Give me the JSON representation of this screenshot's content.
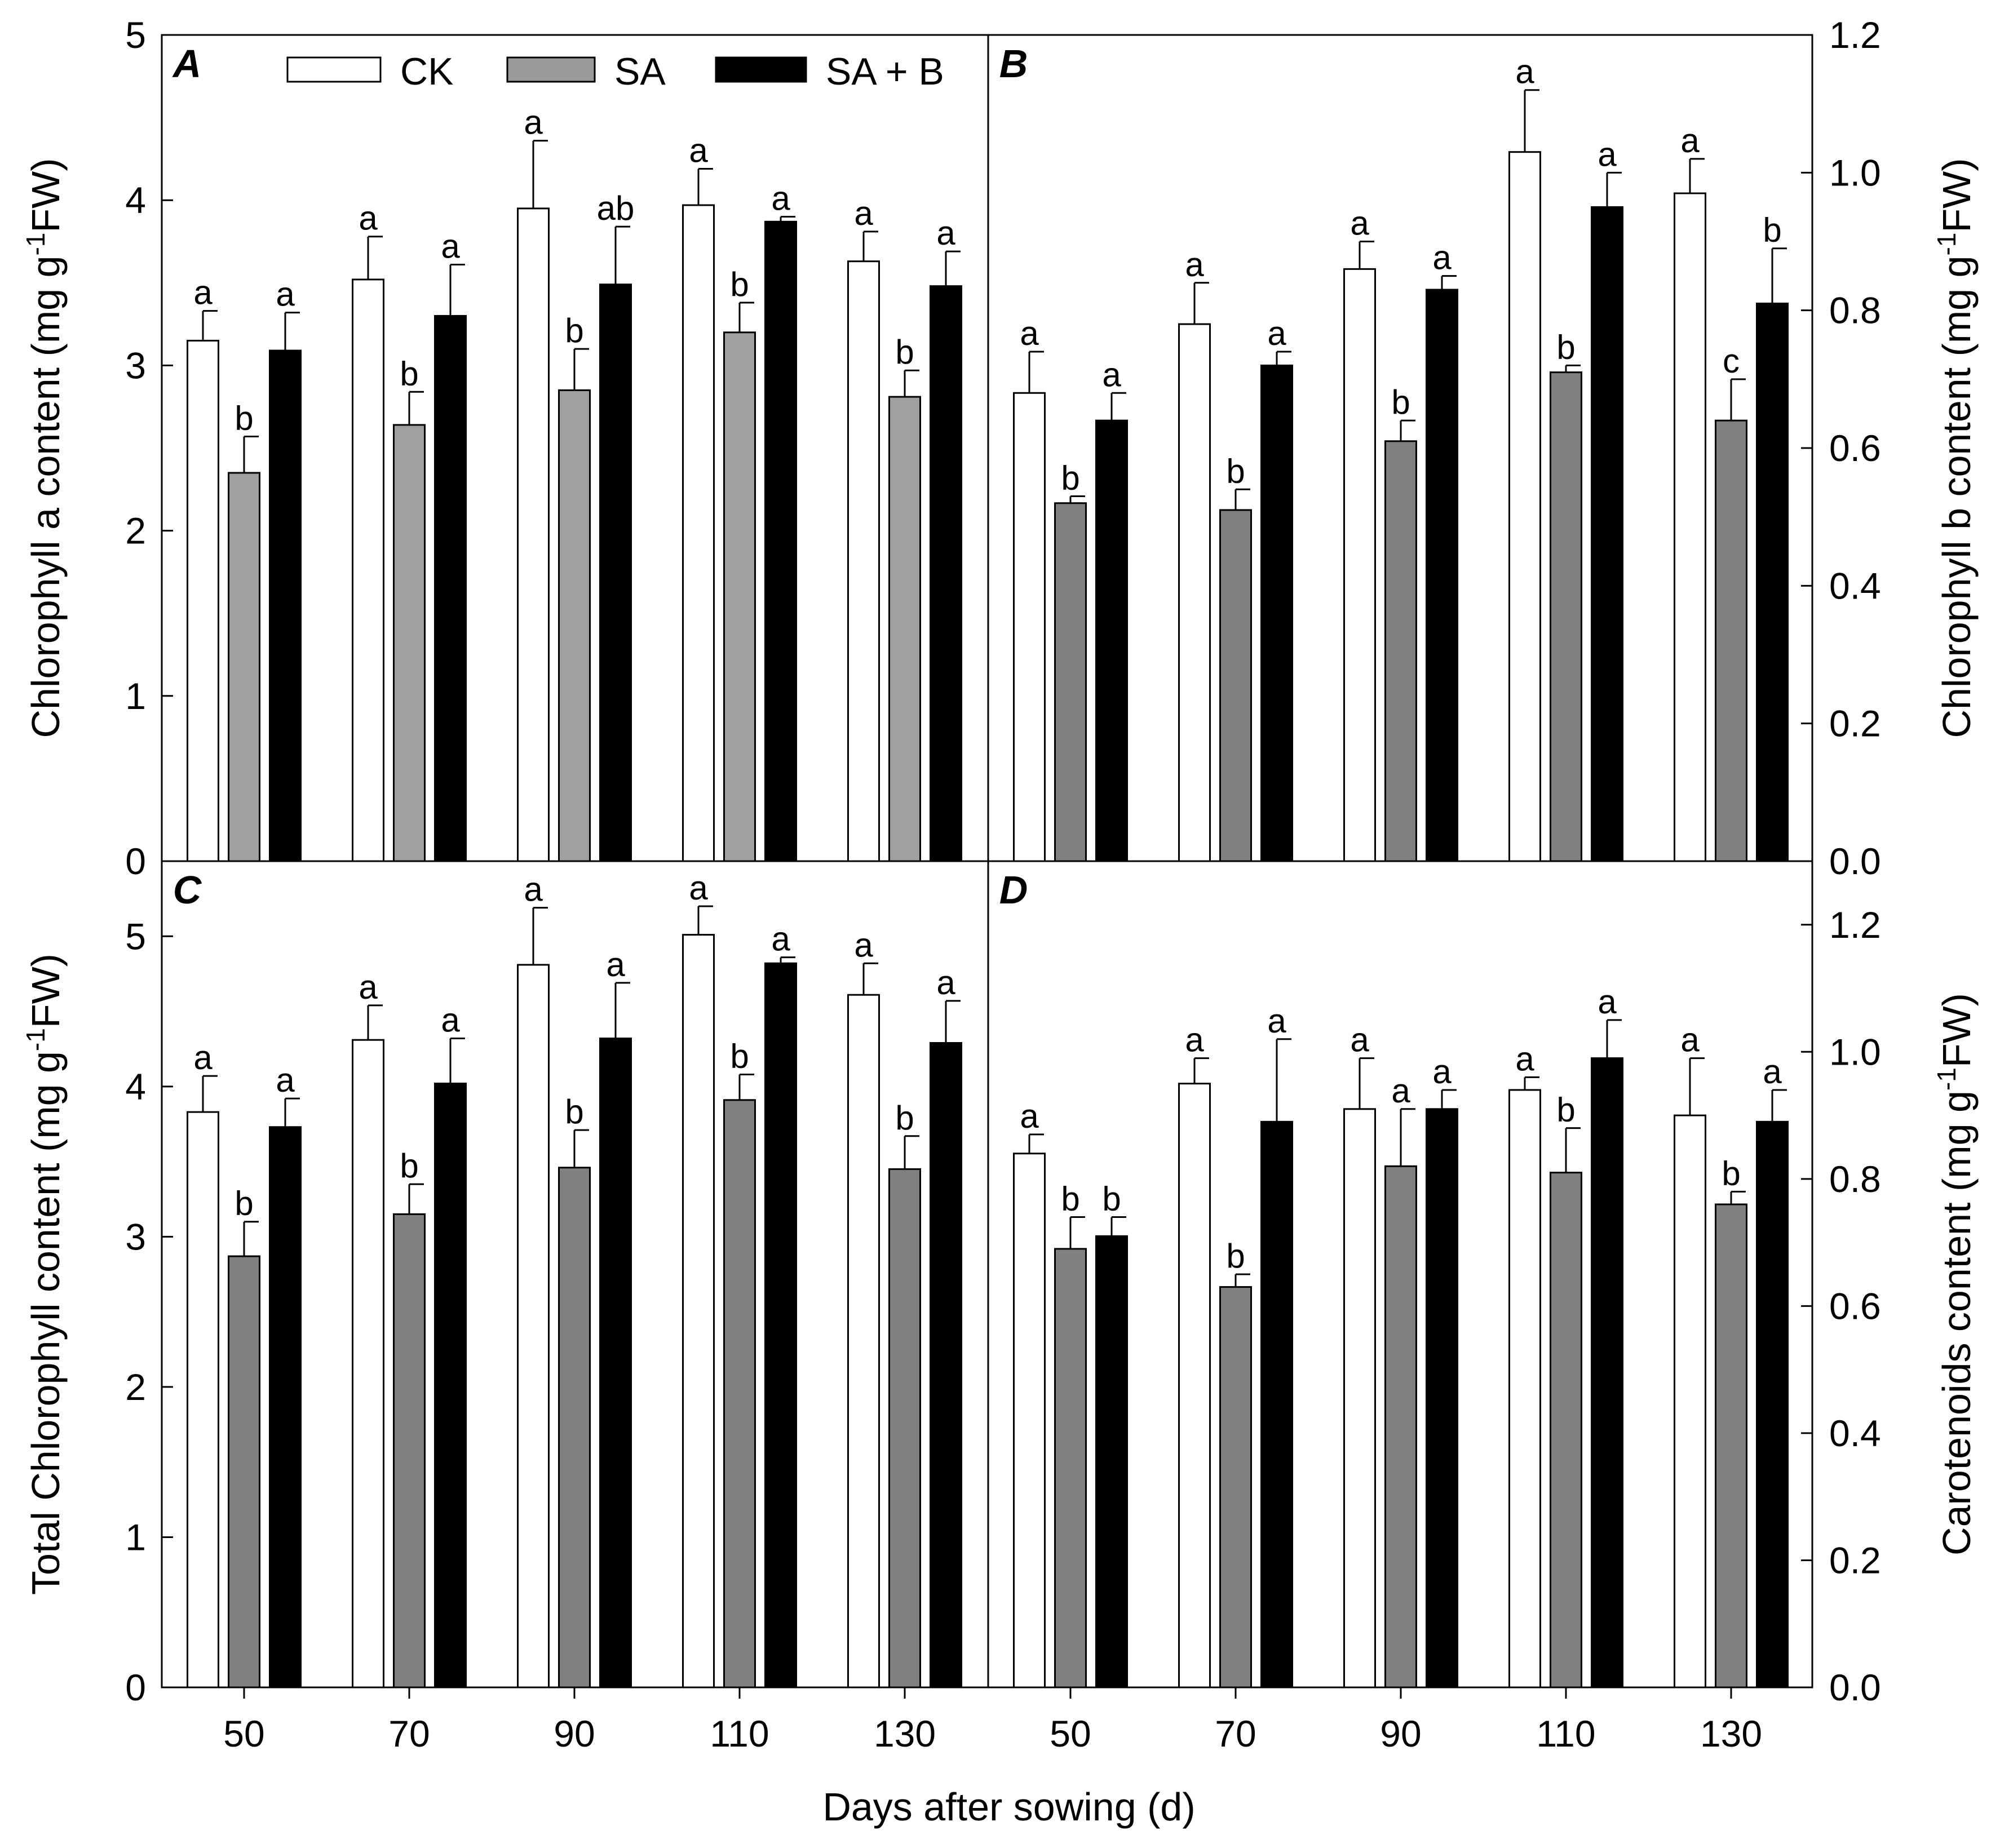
{
  "chart_data": {
    "type": "bar",
    "xlabel": "Days after sowing (d)",
    "categories": [
      "50",
      "70",
      "90",
      "110",
      "130"
    ],
    "legend": [
      {
        "name": "CK",
        "color": "#ffffff"
      },
      {
        "name": "SA",
        "color": "#9a9a9a"
      },
      {
        "name": "SA + B",
        "color": "#000000"
      }
    ],
    "panels": [
      {
        "label": "A",
        "position": "top-left",
        "axis_side": "left",
        "ylabel": "Chlorophyll a content",
        "ylabel_sup": "-1",
        "ylabel_unit": "(mg g",
        "ylabel_end": "FW)",
        "ylim": [
          0,
          5
        ],
        "yticks": [
          {
            "v": 0,
            "t": "0"
          },
          {
            "v": 1,
            "t": "1"
          },
          {
            "v": 2,
            "t": "2"
          },
          {
            "v": 3,
            "t": "3"
          },
          {
            "v": 4,
            "t": "4"
          },
          {
            "v": 5,
            "t": "5"
          }
        ],
        "sa_color": "#a0a0a0",
        "series": [
          {
            "name": "CK",
            "values": [
              3.15,
              3.52,
              3.95,
              3.97,
              3.63
            ],
            "errors": [
              0.18,
              0.26,
              0.41,
              0.22,
              0.18
            ],
            "sig": [
              "a",
              "a",
              "a",
              "a",
              "a"
            ]
          },
          {
            "name": "SA",
            "values": [
              2.35,
              2.64,
              2.85,
              3.2,
              2.81
            ],
            "errors": [
              0.22,
              0.2,
              0.25,
              0.18,
              0.16
            ],
            "sig": [
              "b",
              "b",
              "b",
              "b",
              "b"
            ]
          },
          {
            "name": "SA + B",
            "values": [
              3.09,
              3.3,
              3.49,
              3.87,
              3.48
            ],
            "errors": [
              0.23,
              0.31,
              0.35,
              0.03,
              0.21
            ],
            "sig": [
              "a",
              "a",
              "ab",
              "a",
              "a"
            ]
          }
        ]
      },
      {
        "label": "B",
        "position": "top-right",
        "axis_side": "right",
        "ylabel": "Chlorophyll b content",
        "ylabel_sup": "-1",
        "ylabel_unit": "(mg g",
        "ylabel_end": "FW)",
        "ylim": [
          0,
          1.2
        ],
        "yticks": [
          {
            "v": 0,
            "t": "0.0"
          },
          {
            "v": 0.2,
            "t": "0.2"
          },
          {
            "v": 0.4,
            "t": "0.4"
          },
          {
            "v": 0.6,
            "t": "0.6"
          },
          {
            "v": 0.8,
            "t": "0.8"
          },
          {
            "v": 1.0,
            "t": "1.0"
          },
          {
            "v": 1.2,
            "t": "1.2"
          }
        ],
        "sa_color": "#808080",
        "series": [
          {
            "name": "CK",
            "values": [
              0.68,
              0.78,
              0.86,
              1.03,
              0.97
            ],
            "errors": [
              0.06,
              0.06,
              0.04,
              0.09,
              0.05
            ],
            "sig": [
              "a",
              "a",
              "a",
              "a",
              "a"
            ]
          },
          {
            "name": "SA",
            "values": [
              0.52,
              0.51,
              0.61,
              0.71,
              0.64
            ],
            "errors": [
              0.01,
              0.03,
              0.03,
              0.01,
              0.06
            ],
            "sig": [
              "b",
              "b",
              "b",
              "b",
              "c"
            ]
          },
          {
            "name": "SA + B",
            "values": [
              0.64,
              0.72,
              0.83,
              0.95,
              0.81
            ],
            "errors": [
              0.04,
              0.02,
              0.02,
              0.05,
              0.08
            ],
            "sig": [
              "a",
              "a",
              "a",
              "a",
              "b"
            ]
          }
        ]
      },
      {
        "label": "C",
        "position": "bottom-left",
        "axis_side": "left",
        "ylabel": "Total Chlorophyll content",
        "ylabel_sup": "-1",
        "ylabel_unit": "(mg g",
        "ylabel_end": "FW)",
        "ylim": [
          0,
          5.5
        ],
        "yticks": [
          {
            "v": 0,
            "t": "0"
          },
          {
            "v": 1,
            "t": "1"
          },
          {
            "v": 2,
            "t": "2"
          },
          {
            "v": 3,
            "t": "3"
          },
          {
            "v": 4,
            "t": "4"
          },
          {
            "v": 5,
            "t": "5"
          }
        ],
        "sa_color": "#808080",
        "series": [
          {
            "name": "CK",
            "values": [
              3.83,
              4.31,
              4.81,
              5.01,
              4.61
            ],
            "errors": [
              0.24,
              0.23,
              0.38,
              0.19,
              0.21
            ],
            "sig": [
              "a",
              "a",
              "a",
              "a",
              "a"
            ]
          },
          {
            "name": "SA",
            "values": [
              2.87,
              3.15,
              3.46,
              3.91,
              3.45
            ],
            "errors": [
              0.23,
              0.2,
              0.25,
              0.17,
              0.22
            ],
            "sig": [
              "b",
              "b",
              "b",
              "b",
              "b"
            ]
          },
          {
            "name": "SA + B",
            "values": [
              3.73,
              4.02,
              4.32,
              4.82,
              4.29
            ],
            "errors": [
              0.19,
              0.3,
              0.37,
              0.04,
              0.28
            ],
            "sig": [
              "a",
              "a",
              "a",
              "a",
              "a"
            ]
          }
        ]
      },
      {
        "label": "D",
        "position": "bottom-right",
        "axis_side": "right",
        "ylabel": "Carotenoids  content",
        "ylabel_sup": "-1",
        "ylabel_unit": "(mg g",
        "ylabel_end": "FW)",
        "ylim": [
          0,
          1.3
        ],
        "yticks": [
          {
            "v": 0,
            "t": "0.0"
          },
          {
            "v": 0.2,
            "t": "0.2"
          },
          {
            "v": 0.4,
            "t": "0.4"
          },
          {
            "v": 0.6,
            "t": "0.6"
          },
          {
            "v": 0.8,
            "t": "0.8"
          },
          {
            "v": 1.0,
            "t": "1.0"
          },
          {
            "v": 1.2,
            "t": "1.2"
          }
        ],
        "sa_color": "#808080",
        "series": [
          {
            "name": "CK",
            "values": [
              0.84,
              0.95,
              0.91,
              0.94,
              0.9
            ],
            "errors": [
              0.03,
              0.04,
              0.08,
              0.02,
              0.09
            ],
            "sig": [
              "a",
              "a",
              "a",
              "a",
              "a"
            ]
          },
          {
            "name": "SA",
            "values": [
              0.69,
              0.63,
              0.82,
              0.81,
              0.76
            ],
            "errors": [
              0.05,
              0.02,
              0.09,
              0.07,
              0.02
            ],
            "sig": [
              "b",
              "b",
              "a",
              "b",
              "b"
            ]
          },
          {
            "name": "SA + B",
            "values": [
              0.71,
              0.89,
              0.91,
              0.99,
              0.89
            ],
            "errors": [
              0.03,
              0.13,
              0.03,
              0.06,
              0.05
            ],
            "sig": [
              "b",
              "a",
              "a",
              "a",
              "a"
            ]
          }
        ]
      }
    ]
  }
}
